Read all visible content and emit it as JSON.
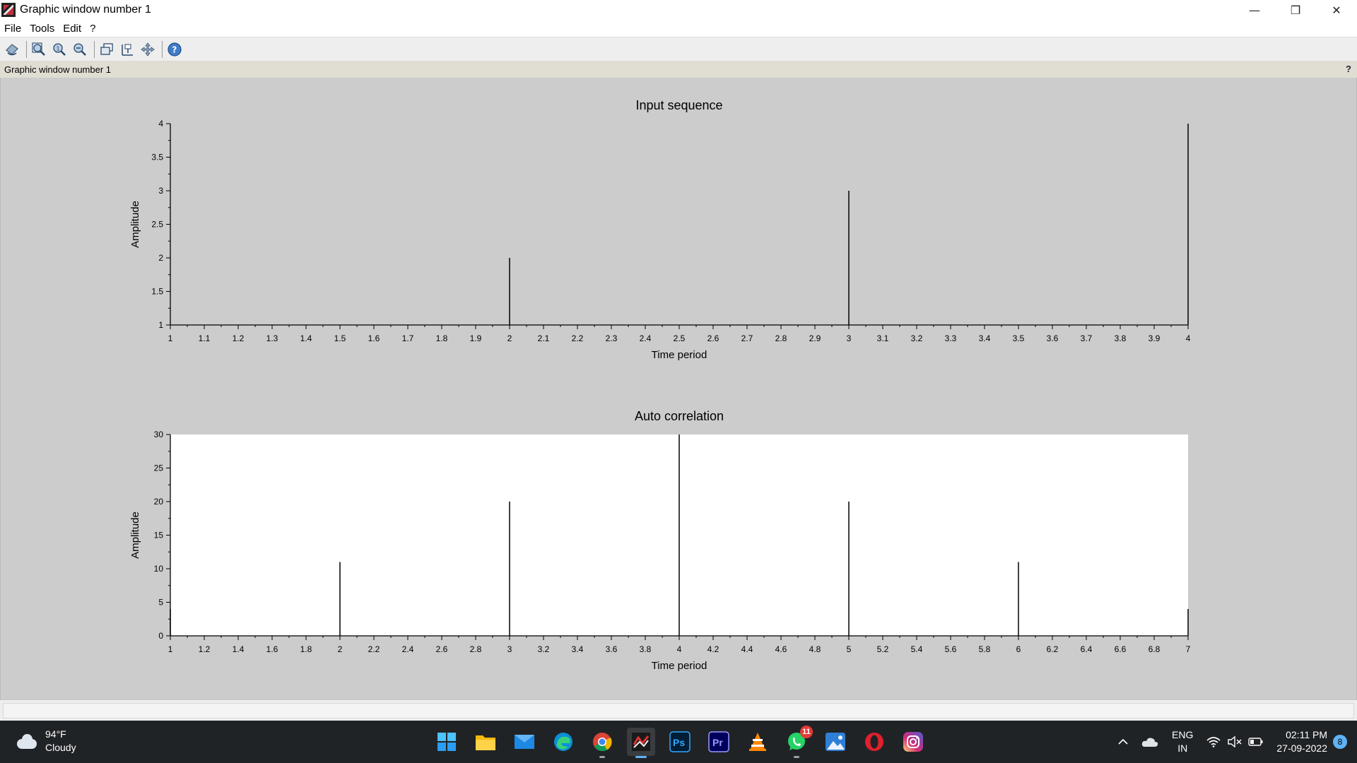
{
  "window": {
    "title": "Graphic window number 1",
    "controls": {
      "minimize": "—",
      "maximize": "❐",
      "close": "✕"
    }
  },
  "menu": {
    "items": [
      "File",
      "Tools",
      "Edit",
      "?"
    ]
  },
  "toolbar": {
    "icons": [
      "rotate-icon",
      "zoom-in-icon",
      "zoom-original-icon",
      "zoom-out-icon",
      "new-window-icon",
      "datatip-icon",
      "pan-icon",
      "help-icon"
    ]
  },
  "infobar": {
    "text": "Graphic window number 1",
    "help": "?"
  },
  "chart_data": [
    {
      "type": "stem",
      "title": "Input sequence",
      "xlabel": "Time period",
      "ylabel": "Amplitude",
      "xlim": [
        1,
        4
      ],
      "ylim": [
        1,
        4
      ],
      "x_ticks": [
        "1",
        "1.1",
        "1.2",
        "1.3",
        "1.4",
        "1.5",
        "1.6",
        "1.7",
        "1.8",
        "1.9",
        "2",
        "2.1",
        "2.2",
        "2.3",
        "2.4",
        "2.5",
        "2.6",
        "2.7",
        "2.8",
        "2.9",
        "3",
        "3.1",
        "3.2",
        "3.3",
        "3.4",
        "3.5",
        "3.6",
        "3.7",
        "3.8",
        "3.9",
        "4"
      ],
      "y_ticks": [
        "1",
        "1.5",
        "2",
        "2.5",
        "3",
        "3.5",
        "4"
      ],
      "x": [
        1,
        2,
        3,
        4
      ],
      "values": [
        1,
        2,
        3,
        4
      ],
      "background": "#cccccc"
    },
    {
      "type": "stem",
      "title": "Auto correlation",
      "xlabel": "Time period",
      "ylabel": "Amplitude",
      "xlim": [
        1,
        7
      ],
      "ylim": [
        0,
        30
      ],
      "x_ticks": [
        "1",
        "1.2",
        "1.4",
        "1.6",
        "1.8",
        "2",
        "2.2",
        "2.4",
        "2.6",
        "2.8",
        "3",
        "3.2",
        "3.4",
        "3.6",
        "3.8",
        "4",
        "4.2",
        "4.4",
        "4.6",
        "4.8",
        "5",
        "5.2",
        "5.4",
        "5.6",
        "5.8",
        "6",
        "6.2",
        "6.4",
        "6.6",
        "6.8",
        "7"
      ],
      "y_ticks": [
        "0",
        "5",
        "10",
        "15",
        "20",
        "25",
        "30"
      ],
      "x": [
        1,
        2,
        3,
        4,
        5,
        6,
        7
      ],
      "values": [
        4,
        11,
        20,
        30,
        20,
        11,
        4
      ],
      "background": "#ffffff"
    }
  ],
  "taskbar": {
    "weather": {
      "temp": "94°F",
      "condition": "Cloudy"
    },
    "apps": [
      {
        "name": "start",
        "badge": ""
      },
      {
        "name": "file-explorer",
        "badge": ""
      },
      {
        "name": "mail",
        "badge": ""
      },
      {
        "name": "edge",
        "badge": ""
      },
      {
        "name": "chrome",
        "badge": ""
      },
      {
        "name": "scilab",
        "badge": ""
      },
      {
        "name": "photoshop",
        "badge": ""
      },
      {
        "name": "premiere",
        "badge": ""
      },
      {
        "name": "vlc",
        "badge": ""
      },
      {
        "name": "whatsapp",
        "badge": "11"
      },
      {
        "name": "photos",
        "badge": ""
      },
      {
        "name": "opera",
        "badge": ""
      },
      {
        "name": "instagram",
        "badge": ""
      }
    ],
    "ps_label": "Ps",
    "pr_label": "Pr",
    "lang": {
      "line1": "ENG",
      "line2": "IN"
    },
    "clock": {
      "time": "02:11 PM",
      "date": "27-09-2022"
    },
    "notifications": "8"
  }
}
